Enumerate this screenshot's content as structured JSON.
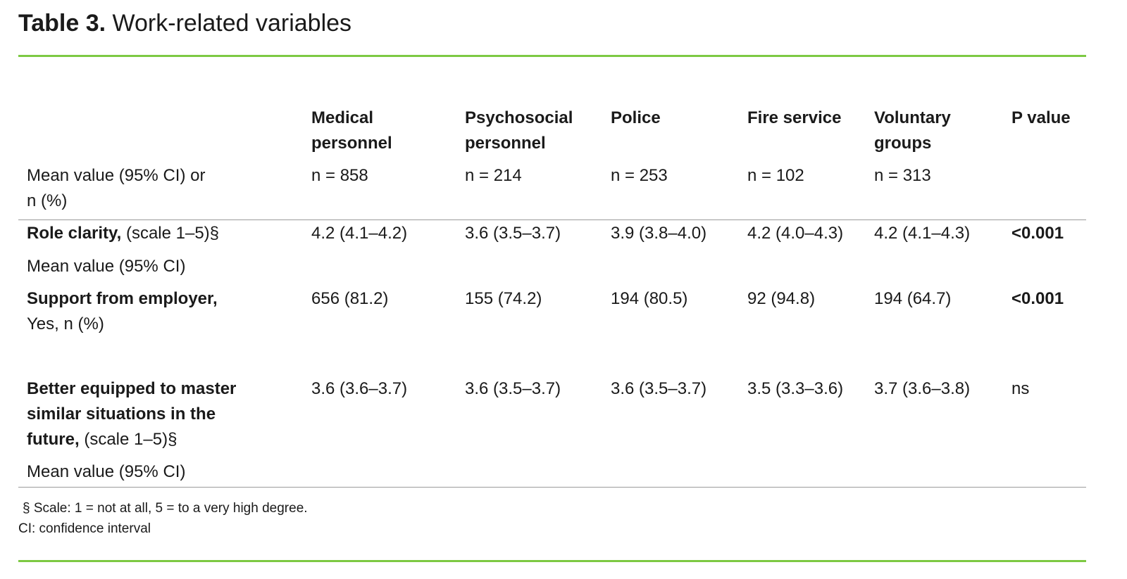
{
  "title": {
    "label": "Table 3.",
    "text": "Work-related variables"
  },
  "header": {
    "stub": [
      "Mean value (95% CI) or",
      "n (%)"
    ],
    "columns": [
      {
        "name": [
          "Medical",
          "personnel"
        ],
        "n": "n = 858"
      },
      {
        "name": [
          "Psychosocial",
          "personnel"
        ],
        "n": "n = 214"
      },
      {
        "name": [
          "Police",
          ""
        ],
        "n": "n = 253"
      },
      {
        "name": [
          "Fire service",
          ""
        ],
        "n": "n = 102"
      },
      {
        "name": [
          "Voluntary",
          "groups"
        ],
        "n": "n = 313"
      },
      {
        "name": [
          "P value",
          ""
        ],
        "n": ""
      }
    ]
  },
  "rows": [
    {
      "label_bold": [
        "Role clarity,"
      ],
      "label_rest": " (scale 1–5)§",
      "sub": "Mean value (95% CI)",
      "values": [
        "4.2 (4.1–4.2)",
        "3.6 (3.5–3.7)",
        "3.9 (3.8–4.0)",
        "4.2 (4.0–4.3)",
        "4.2 (4.1–4.3)",
        "<0.001"
      ]
    },
    {
      "label_bold": [
        "Support from employer,"
      ],
      "label_rest": "",
      "sub": "Yes, n (%)",
      "values": [
        "656 (81.2)",
        "155 (74.2)",
        "194 (80.5)",
        "92 (94.8)",
        "194 (64.7)",
        "<0.001"
      ]
    },
    {
      "label_bold": [
        "Better equipped to master",
        "similar situations in the",
        "future,"
      ],
      "label_rest": " (scale 1–5)§",
      "sub": "Mean value (95% CI)",
      "values": [
        "3.6 (3.6–3.7)",
        "3.6 (3.5–3.7)",
        "3.6 (3.5–3.7)",
        "3.5 (3.3–3.6)",
        "3.7 (3.6–3.8)",
        "ns"
      ]
    }
  ],
  "footnotes": [
    "§  Scale: 1 = not at all, 5 = to a very high degree.",
    "CI: confidence interval"
  ],
  "colors": {
    "accent": "#7dc943",
    "rule": "#9a9a9a"
  }
}
